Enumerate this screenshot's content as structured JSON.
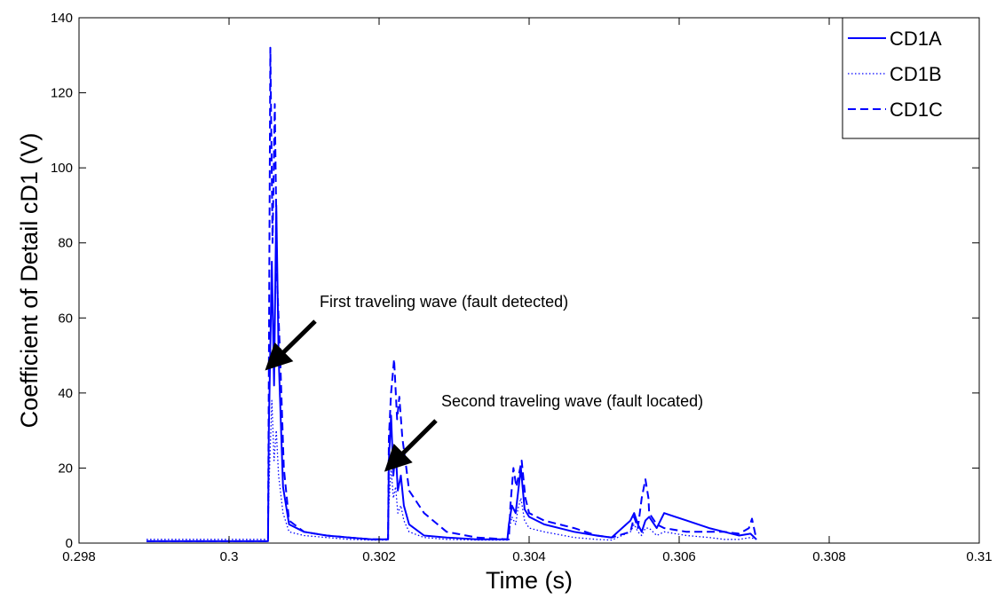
{
  "chart_data": {
    "type": "line",
    "xlabel": "Time (s)",
    "ylabel": "Coefficient of Detail cD1 (V)",
    "xlim": [
      0.298,
      0.31
    ],
    "ylim": [
      0,
      140
    ],
    "xticks": [
      0.298,
      0.3,
      0.302,
      0.304,
      0.306,
      0.308,
      0.31
    ],
    "xtick_labels": [
      "0.298",
      "0.3",
      "0.302",
      "0.304",
      "0.306",
      "0.308",
      "0.31"
    ],
    "yticks": [
      0,
      20,
      40,
      60,
      80,
      100,
      120,
      140
    ],
    "ytick_labels": [
      "0",
      "20",
      "40",
      "60",
      "80",
      "100",
      "120",
      "140"
    ],
    "grid": false,
    "legend_position": "top-right",
    "series": [
      {
        "name": "CD1A",
        "style": "solid",
        "color": "#0000ff",
        "x": [
          0.2989,
          0.30052,
          0.30053,
          0.30057,
          0.3006,
          0.30063,
          0.30066,
          0.30072,
          0.3008,
          0.301,
          0.3013,
          0.3016,
          0.3019,
          0.30212,
          0.30213,
          0.30216,
          0.30219,
          0.30222,
          0.30225,
          0.30229,
          0.30233,
          0.3024,
          0.3026,
          0.3029,
          0.3033,
          0.30371,
          0.30373,
          0.30377,
          0.30382,
          0.30385,
          0.30389,
          0.30394,
          0.304,
          0.3042,
          0.3046,
          0.3049,
          0.3051,
          0.30535,
          0.3054,
          0.30545,
          0.3055,
          0.30555,
          0.3056,
          0.3057,
          0.3058,
          0.3061,
          0.3064,
          0.3066,
          0.3068,
          0.30695,
          0.30703
        ],
        "y": [
          0.5,
          0.5,
          30,
          75,
          42,
          90,
          50,
          15,
          5,
          3,
          2,
          1.5,
          1,
          1,
          22,
          34,
          18,
          25,
          14,
          18,
          10,
          5,
          2,
          1.5,
          1,
          1,
          5,
          10,
          8,
          13,
          20,
          9,
          7,
          5,
          3,
          2,
          1.5,
          6,
          8,
          5,
          3,
          6,
          7,
          4,
          8,
          6,
          4,
          3,
          2,
          2.5,
          1
        ]
      },
      {
        "name": "CD1B",
        "style": "dotted",
        "color": "#0000ff",
        "x": [
          0.2989,
          0.30052,
          0.30053,
          0.30057,
          0.3006,
          0.30063,
          0.30066,
          0.30072,
          0.3008,
          0.301,
          0.3013,
          0.3016,
          0.3019,
          0.30212,
          0.30213,
          0.30216,
          0.30219,
          0.30222,
          0.30225,
          0.30229,
          0.30233,
          0.3024,
          0.3026,
          0.3029,
          0.3033,
          0.30371,
          0.30373,
          0.30377,
          0.30382,
          0.30385,
          0.30389,
          0.30394,
          0.304,
          0.3042,
          0.3046,
          0.3049,
          0.3051,
          0.30535,
          0.3054,
          0.30545,
          0.3055,
          0.30555,
          0.3056,
          0.3057,
          0.3058,
          0.3061,
          0.3064,
          0.3066,
          0.3068,
          0.30695,
          0.30703
        ],
        "y": [
          1,
          1,
          14,
          38,
          22,
          30,
          18,
          8,
          3,
          2,
          1.5,
          1,
          0.8,
          0.8,
          10,
          20,
          12,
          15,
          8,
          10,
          6,
          3,
          1.5,
          1,
          0.8,
          0.8,
          3,
          7,
          5,
          9,
          12,
          6,
          4,
          3,
          1.5,
          1,
          0.8,
          3,
          5,
          3,
          2,
          4,
          4,
          2,
          3,
          2,
          1.5,
          1,
          1,
          1.5,
          1
        ]
      },
      {
        "name": "CD1C",
        "style": "dashed",
        "color": "#0000ff",
        "x": [
          0.2989,
          0.30052,
          0.30053,
          0.30055,
          0.30058,
          0.30061,
          0.30064,
          0.30068,
          0.30073,
          0.3008,
          0.301,
          0.3013,
          0.3016,
          0.3019,
          0.30212,
          0.30213,
          0.30216,
          0.3022,
          0.30224,
          0.30227,
          0.30231,
          0.30235,
          0.3024,
          0.3026,
          0.3029,
          0.3033,
          0.30371,
          0.30373,
          0.30375,
          0.30379,
          0.30383,
          0.30386,
          0.3039,
          0.30395,
          0.304,
          0.3042,
          0.3046,
          0.3049,
          0.3051,
          0.30535,
          0.3054,
          0.30545,
          0.3055,
          0.30555,
          0.30559,
          0.3056,
          0.3057,
          0.3058,
          0.3061,
          0.3064,
          0.3066,
          0.3068,
          0.30693,
          0.30697,
          0.30703
        ],
        "y": [
          0.5,
          0.5,
          45,
          132,
          80,
          117,
          70,
          50,
          20,
          6,
          3,
          2,
          1.5,
          1,
          1,
          28,
          40,
          49,
          33,
          39,
          28,
          22,
          14,
          8,
          3,
          1.5,
          1,
          1,
          10,
          20,
          15,
          18,
          22,
          12,
          8,
          6,
          4,
          2,
          1.5,
          3,
          7,
          4,
          12,
          17,
          12,
          8,
          5,
          4,
          3,
          3,
          3,
          2.5,
          4,
          6.5,
          1
        ]
      }
    ],
    "annotations": [
      {
        "text": "First traveling wave (fault detected)",
        "arrow_to_x": 0.30053,
        "arrow_to_y": 47
      },
      {
        "text": "Second traveling wave (fault located)",
        "arrow_to_x": 0.30212,
        "arrow_to_y": 20
      }
    ]
  }
}
